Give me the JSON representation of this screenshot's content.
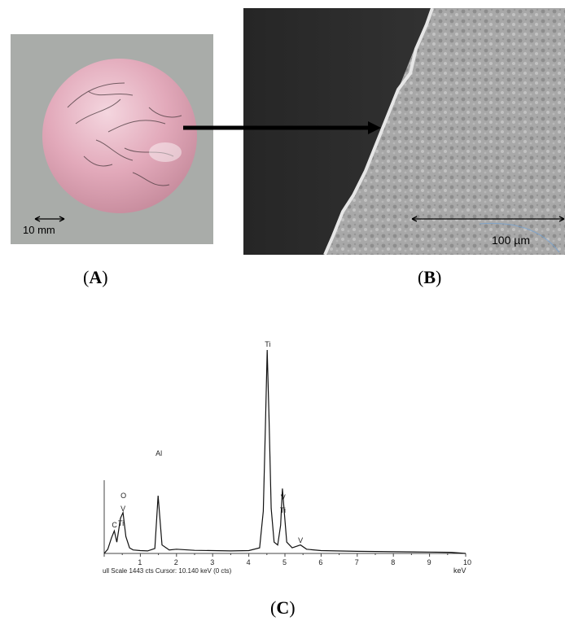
{
  "panel_a": {
    "caption_letter": "A",
    "scale_label": "10 mm",
    "colors": {
      "background": "#a9aca9",
      "sphere": "#e0aab9"
    }
  },
  "panel_b": {
    "caption_letter": "B",
    "scale_label": "100 µm"
  },
  "panel_c": {
    "caption_letter": "C",
    "chart_data": {
      "type": "line",
      "xlabel": "keV",
      "xlim": [
        0,
        10
      ],
      "x_ticks": [
        "1",
        "2",
        "3",
        "4",
        "5",
        "6",
        "7",
        "8",
        "9",
        "10"
      ],
      "footer": "ull Scale 1443 cts  Cursor: 10.140 keV (0 cts)",
      "peak_labels": [
        {
          "label": "C",
          "x": 0.28
        },
        {
          "label": "O",
          "x": 0.52
        },
        {
          "label": "V",
          "x": 0.52
        },
        {
          "label": "Ti",
          "x": 0.45
        },
        {
          "label": "Al",
          "x": 1.49
        },
        {
          "label": "Ti",
          "x": 4.51
        },
        {
          "label": "V",
          "x": 4.95
        },
        {
          "label": "Ti",
          "x": 4.93
        },
        {
          "label": "V",
          "x": 5.43
        }
      ],
      "series": [
        {
          "x": [
            0,
            0.1,
            0.2,
            0.28,
            0.35,
            0.45,
            0.52,
            0.6,
            0.7,
            0.8,
            1.0,
            1.2,
            1.4,
            1.49,
            1.6,
            1.8,
            2.0,
            2.5,
            3.0,
            3.5,
            4.0,
            4.3,
            4.4,
            4.46,
            4.51,
            4.56,
            4.62,
            4.7,
            4.8,
            4.88,
            4.93,
            4.98,
            5.05,
            5.2,
            5.43,
            5.6,
            6.0,
            7.0,
            8.0,
            9.0,
            9.6,
            10.0
          ],
          "y": [
            0,
            30,
            110,
            160,
            80,
            250,
            290,
            120,
            40,
            25,
            20,
            18,
            35,
            410,
            60,
            25,
            30,
            22,
            20,
            18,
            20,
            40,
            300,
            900,
            1443,
            950,
            320,
            80,
            60,
            200,
            460,
            300,
            80,
            40,
            60,
            30,
            20,
            15,
            12,
            10,
            8,
            0
          ]
        }
      ]
    }
  }
}
